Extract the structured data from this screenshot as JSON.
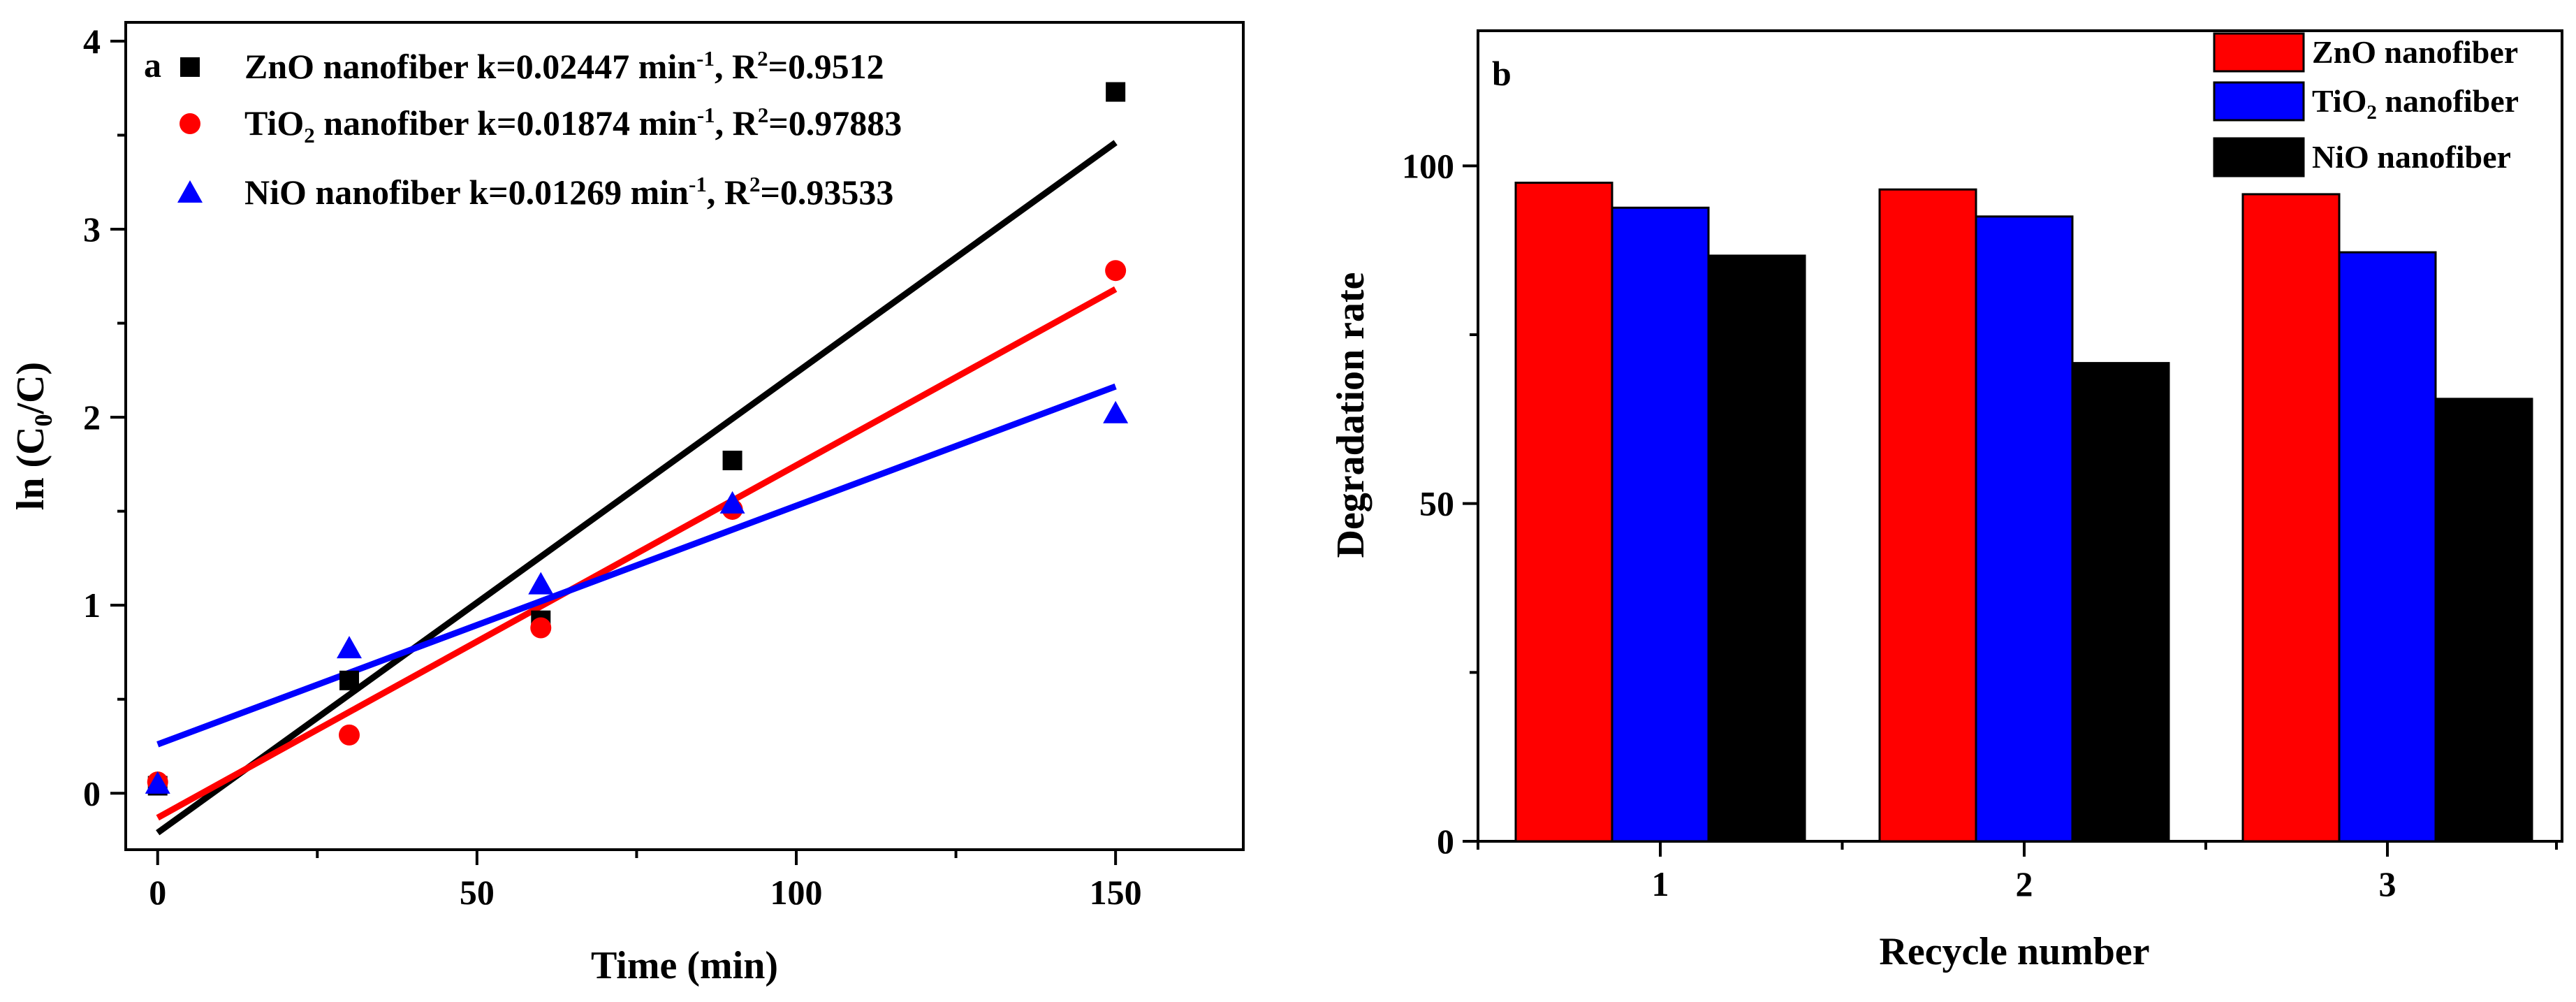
{
  "chart_data": [
    {
      "type": "scatter",
      "panel_label": "a",
      "xlabel": "Time (min)",
      "ylabel": {
        "pre": "ln (C",
        "sub": "0",
        "post": "/C)"
      },
      "xlim": [
        -5,
        170
      ],
      "ylim": [
        -0.3,
        4.1
      ],
      "xticks": [
        "0",
        "50",
        "100",
        "150"
      ],
      "yticks": [
        "0",
        "1",
        "2",
        "3",
        "4"
      ],
      "series": [
        {
          "name": "ZnO nanofiber",
          "marker": "square",
          "color": "#000000",
          "x": [
            0,
            30,
            60,
            90,
            150
          ],
          "y": [
            0.04,
            0.6,
            0.92,
            1.77,
            3.73
          ],
          "fit": {
            "intercept": -0.21,
            "slope": 0.02447,
            "x_range": [
              0,
              150
            ]
          },
          "legend": {
            "prefix": "ZnO nanofiber k=0.02447 min",
            "sup": "-1",
            "mid": ", R",
            "sup2": "2",
            "tail": "=0.9512"
          }
        },
        {
          "name": "TiO2 nanofiber",
          "marker": "circle",
          "color": "#ff0000",
          "x": [
            0,
            30,
            60,
            90,
            150
          ],
          "y": [
            0.06,
            0.31,
            0.88,
            1.51,
            2.78
          ],
          "fit": {
            "intercept": -0.13,
            "slope": 0.01874,
            "x_range": [
              0,
              150
            ]
          },
          "legend": {
            "prefix": "TiO",
            "sub": "2",
            "prefix2": " nanofiber k=0.01874 min",
            "sup": "-1",
            "mid": ", R",
            "sup2": "2",
            "tail": "=0.97883"
          }
        },
        {
          "name": "NiO nanofiber",
          "marker": "triangle",
          "color": "#0000ff",
          "x": [
            0,
            30,
            60,
            90,
            150
          ],
          "y": [
            0.05,
            0.77,
            1.11,
            1.54,
            2.02
          ],
          "fit": {
            "intercept": 0.26,
            "slope": 0.01269,
            "x_range": [
              0,
              150
            ]
          },
          "legend": {
            "prefix": "NiO nanofiber  k=0.01269 min",
            "sup": "-1",
            "mid": ", R",
            "sup2": "2",
            "tail": "=0.93533"
          }
        }
      ]
    },
    {
      "type": "bar",
      "panel_label": "b",
      "xlabel": "Recycle number",
      "ylabel": "Degradation rate",
      "categories": [
        "1",
        "2",
        "3"
      ],
      "ylim": [
        0,
        120
      ],
      "yticks": [
        "0",
        "50",
        "100"
      ],
      "series": [
        {
          "name": "ZnO nanofiber",
          "color": "#ff0000",
          "values": [
            97.5,
            96.5,
            95.8
          ],
          "legend": {
            "prefix": "ZnO nanofiber"
          }
        },
        {
          "name": "TiO2 nanofiber",
          "color": "#0000ff",
          "values": [
            93.8,
            92.5,
            87.2
          ],
          "legend": {
            "prefix": "TiO",
            "sub": "2",
            "prefix2": " nanofiber"
          }
        },
        {
          "name": "NiO nanofiber",
          "color": "#000000",
          "values": [
            86.7,
            70.8,
            65.5
          ],
          "legend": {
            "prefix": "NiO nanofiber"
          }
        }
      ]
    }
  ]
}
